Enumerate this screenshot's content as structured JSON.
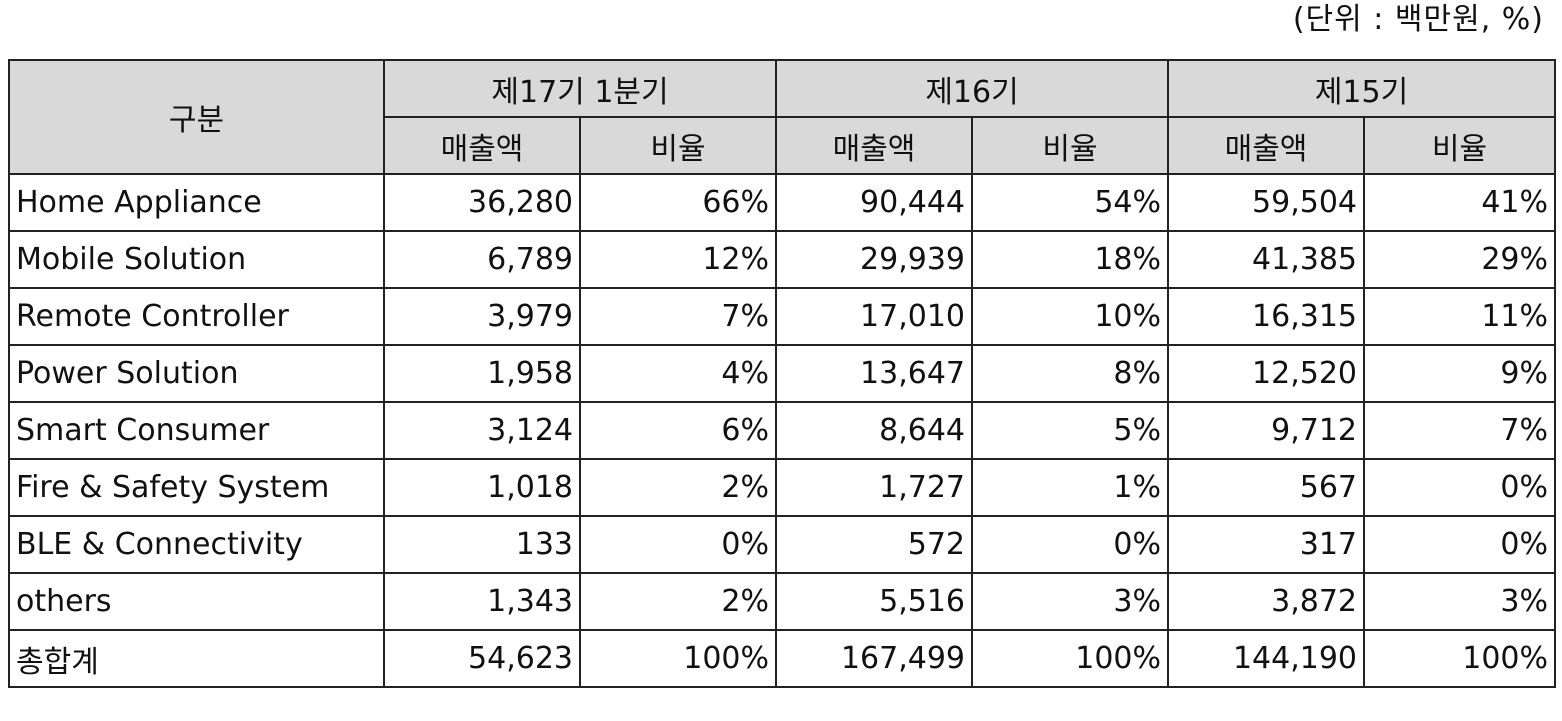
{
  "unit_note": "(단위 : 백만원, %)",
  "header": {
    "category": "구분",
    "periods": [
      "제17기 1분기",
      "제16기",
      "제15기"
    ],
    "sales": "매출액",
    "ratio": "비율"
  },
  "rows": [
    {
      "label": "Home Appliance",
      "cells": [
        "36,280",
        "66%",
        "90,444",
        "54%",
        "59,504",
        "41%"
      ]
    },
    {
      "label": "Mobile Solution",
      "cells": [
        "6,789",
        "12%",
        "29,939",
        "18%",
        "41,385",
        "29%"
      ]
    },
    {
      "label": "Remote Controller",
      "cells": [
        "3,979",
        "7%",
        "17,010",
        "10%",
        "16,315",
        "11%"
      ]
    },
    {
      "label": "Power Solution",
      "cells": [
        "1,958",
        "4%",
        "13,647",
        "8%",
        "12,520",
        "9%"
      ]
    },
    {
      "label": "Smart Consumer",
      "cells": [
        "3,124",
        "6%",
        "8,644",
        "5%",
        "9,712",
        "7%"
      ]
    },
    {
      "label": "Fire & Safety System",
      "cells": [
        "1,018",
        "2%",
        "1,727",
        "1%",
        "567",
        "0%"
      ]
    },
    {
      "label": "BLE & Connectivity",
      "cells": [
        "133",
        "0%",
        "572",
        "0%",
        "317",
        "0%"
      ]
    },
    {
      "label": "others",
      "cells": [
        "1,343",
        "2%",
        "5,516",
        "3%",
        "3,872",
        "3%"
      ]
    },
    {
      "label": "총합계",
      "cells": [
        "54,623",
        "100%",
        "167,499",
        "100%",
        "144,190",
        "100%"
      ]
    }
  ]
}
